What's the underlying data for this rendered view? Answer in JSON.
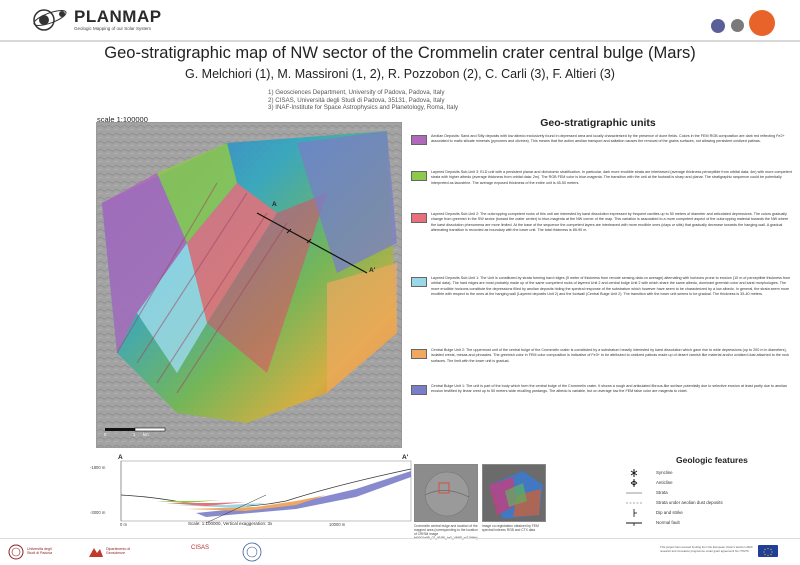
{
  "header": {
    "logo_text": "PLANMAP",
    "logo_subtitle": "Geologic Mapping of our Solar System",
    "dot_colors": [
      "#5b5f97",
      "#7a7a7a",
      "#e8632a"
    ]
  },
  "title": "Geo-stratigraphic map of NW sector of the Crommelin crater central bulge (Mars)",
  "authors": "G. Melchiori (1), M. Massironi (1, 2), R. Pozzobon (2), C. Carli (3), F. Altieri (3)",
  "affiliations": [
    "1) Geosciences Department, University of Padova, Padova, Italy",
    "2) CISAS, Università degli Studi di Padova, 35131, Padova, Italy",
    "3) INAF-Institute for Space Astrophysics and Planetology, Roma, Italy"
  ],
  "map": {
    "scale_label": "scale 1:100000",
    "label_a": "A",
    "label_a_prime": "A'",
    "scalebar_zero": "0",
    "scalebar_one": "1",
    "scalebar_unit": "km"
  },
  "units": {
    "title": "Geo-stratigraphic units",
    "items": [
      {
        "color": "#b068b8",
        "text": "Aeolian Deposits: Sand and Silty deposits with low albedo exclusively found in depressed area and locally characterized by the presence of dune fields. Colors in the FEM RGB composition are dark red reflecting Fe2+ associated to mafic silicate minerals (pyroxens and olivines). This means that the action aeolian transport and saltation causes the removal of the grains surfaces, not allowing persistent oxidized patinas."
      },
      {
        "color": "#8fc84a",
        "text": "Layered Deposits Sub-Unit 3: ELD unit with a persistent planar and dichotomic stratification. In particular, dark more erodible strata are interleaved (average thickness perceptible from orbital data: 4m) with more competent strata with higher albedo (average thickness from orbital data: 2m). The RGB FEM color is blue-magenta. The transition with the unit at the footwall is sharp and planar. The stratigraphic sequence could be potentially interpreted as lacustrine. The average exposed thickness of the entire unit is 45-50 meters."
      },
      {
        "color": "#e8707a",
        "text": "Layered Deposits Sub-Unit 2: The outcropping competent rocks of this unit are interested by karst dissolution expressed by frequent cavities up to 50 meters of diameter and articulated depressions. The colors gradually change from greenish in the SW sector (toward the crater center) to blue-magenta at the NW corner of the map. This variation is associated to a more competent aspect of the outcropping material towards the NW where the karst dissolution phenomena are more limited. At the base of the sequence the competent layers are interleaved with more erodible ones (clays or silts) that gradually decrease towards the hanging-wall. A gradual alternating transition is recorded as boundary with the lower unit. The total thickness is 85-90 m."
      },
      {
        "color": "#9ad8e8",
        "text": "Layered Deposits Sub-Unit 1: The Unit is constituted by strata forming hard ridges (5 meter of thickness from remote sensing data on average) alternating with horizons prone to erosion (10 m of perceptible thickness from orbital data). The hard ridges are most probably made up of the same competent rocks of layered Unit 2 and central bulge Unit 2 with which share the same albedo, dominant greenish color and karst morphologies. The more erodible horizons constitute the depressions filled by aeolian deposits hiding the spectral response of the substratum which however have seem to be characterized by a low albedo. In general, the strata seem more erodible with respect to the ones at the hanging wall (Layered deposits Unit 2) and the footwall (Central Bulge Unit 2). The transition with the lower unit seems to be gradual. The thickness is 35-40 meters."
      },
      {
        "color": "#f0a860",
        "text": "Central Bulge Unit 2: The uppermost unit of the central bulge of the Crommelin crater is constituted by a substratum heavily interested by karst dissolution which gave rise to wide depressions (up to 200 m in diameters), isolated crests, mesas and pinnacles. The greenish color in FEM color composition is indicative of Fe3+ to be attributed to oxidized patinas made up of desert varnish like material and/or oxidized dust attached to the rock surfaces. The limit with the lower unit is gradual."
      },
      {
        "color": "#7a7ec8",
        "text": "Central Bulge Unit 1: The unit is part of the body which form the central bulge of the Crommelin crater. It shows a rough and articulated fibrous-like surface potentially due to selective erosion at least partly due to aeolian erosion testified by linear crest up to 50 meters wide recalling yardangs. The albedo is variable, but on average low the FEM false color are magenta to violet."
      }
    ]
  },
  "profile": {
    "label_a": "A",
    "label_a_prime": "A'",
    "y_top_label": "-1800 m",
    "y_bottom_label": "-3000 m",
    "x_start_label": "0 m",
    "x_end_label": "10000 m",
    "scale_text": "Scale: 1:100000, Vertical exaggeration: 3x"
  },
  "thumbnails": {
    "left_caption": "Crommelin central bulge and location of the mapped area (corresponding to the location of CRISM image frt0001e99_07_if165l_trr3_VMIR_sr216fhb)",
    "right_caption": "Image co-registration obtained by FEM spectral indexes RGB and CTX data"
  },
  "geologic_features": {
    "title": "Geologic features",
    "items": [
      "Syncline",
      "Anticline",
      "Strata",
      "Strata under aeolian dust deposits",
      "Dip and strike",
      "Normal fault"
    ]
  },
  "footer": {
    "unipd_name": "Università degli Studi di Padova",
    "geo_dept": "Dipartimento di Geoscienze",
    "cisas": "CISAS",
    "eu_note": "This project has received funding from the European Union's Horizon 2020 research and innovation programme under grant agreement No 776276"
  }
}
